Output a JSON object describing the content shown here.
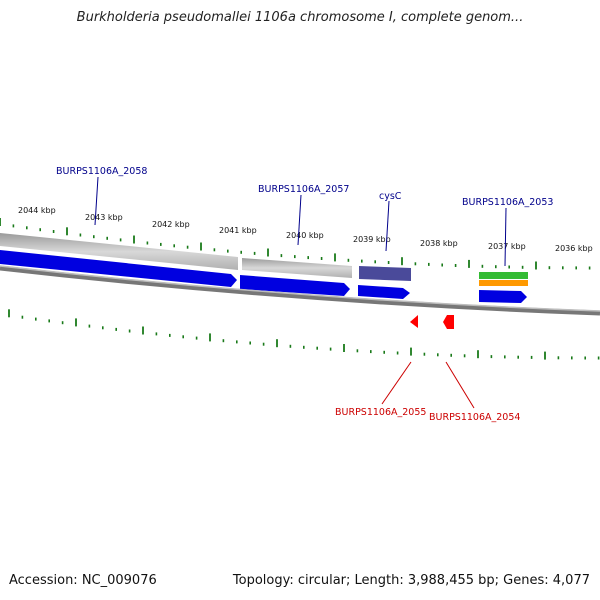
{
  "title": "Burkholderia pseudomallei 1106a chromosome I, complete genom...",
  "footer": {
    "accession": "Accession: NC_009076",
    "summary": "Topology: circular; Length: 3,988,455 bp; Genes: 4,077"
  },
  "kbp_labels": [
    "2044 kbp",
    "2043 kbp",
    "2042 kbp",
    "2041 kbp",
    "2040 kbp",
    "2039 kbp",
    "2038 kbp",
    "2037 kbp",
    "2036 kbp"
  ],
  "genes_top": [
    {
      "label": "BURPS1106A_2058",
      "color": "#00008b"
    },
    {
      "label": "BURPS1106A_2057",
      "color": "#00008b"
    },
    {
      "label": "cysC",
      "color": "#00008b"
    },
    {
      "label": "BURPS1106A_2053",
      "color": "#00008b"
    }
  ],
  "genes_bottom": [
    {
      "label": "BURPS1106A_2055",
      "color": "#cc0000"
    },
    {
      "label": "BURPS1106A_2054",
      "color": "#cc0000"
    }
  ],
  "colors": {
    "forward_gene": "#0000e0",
    "reverse_gene": "#ff0000",
    "tick": "#1a7a1a",
    "backbone": "#888888",
    "cds_gray": "#c8c8c8",
    "cysC_box": "#4a4a9a",
    "green_feature": "#33bb33",
    "orange_feature": "#ff9900"
  }
}
